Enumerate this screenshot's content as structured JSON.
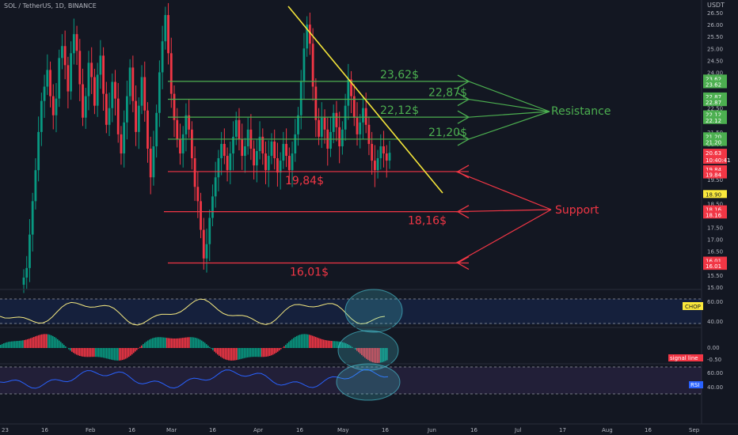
{
  "header": {
    "symbol": "SOL / TetherUS, 1D, BINANCE",
    "currency": "USDT"
  },
  "colors": {
    "bg": "#131722",
    "up": "#089981",
    "down": "#f23645",
    "resistance": "#4caf50",
    "support": "#f23645",
    "trend": "#f5e63a",
    "rsi": "#2962ff",
    "chop": "#f5e980"
  },
  "chart_data": {
    "type": "candlestick",
    "price_axis": [
      "26.50",
      "26.00",
      "25.50",
      "25.00",
      "24.50",
      "24.00",
      "23.50",
      "23.00",
      "22.50",
      "22.00",
      "21.50",
      "21.00",
      "20.50",
      "20.00",
      "19.50",
      "19.00",
      "18.50",
      "18.00",
      "17.50",
      "17.00",
      "16.50",
      "16.00",
      "15.50",
      "15.00"
    ],
    "ylim": [
      14.7,
      26.8
    ],
    "time_axis": [
      "23",
      "16",
      "Feb",
      "16",
      "Mar",
      "16",
      "Apr",
      "16",
      "May",
      "16",
      "Jun",
      "16",
      "Jul",
      "17",
      "Aug",
      "16",
      "Sep"
    ],
    "resistance_levels": [
      {
        "label": "23,62$",
        "value": 23.62,
        "tag": "23.62"
      },
      {
        "label": "22,87$",
        "value": 22.87,
        "tag": "22.87"
      },
      {
        "label": "22,12$",
        "value": 22.12,
        "tag": "22.12"
      },
      {
        "label": "21,20$",
        "value": 21.2,
        "tag": "21.20"
      }
    ],
    "support_levels": [
      {
        "label": "19,84$",
        "value": 19.84,
        "tag": "19.84"
      },
      {
        "label": "18,16$",
        "value": 18.16,
        "tag": "18.16"
      },
      {
        "label": "16,01$",
        "value": 16.01,
        "tag": "16.01"
      }
    ],
    "annotations": {
      "resistance": "Resistance",
      "support": "Support"
    },
    "last_price": {
      "value": 20.63,
      "label": "20.63",
      "countdown": "10:40:41"
    },
    "prev_tag": {
      "value": 18.9,
      "label": "18.90"
    },
    "candles_close": [
      15.4,
      15.8,
      17.2,
      18.6,
      19.9,
      21.5,
      22.8,
      23.4,
      24.1,
      23.0,
      22.2,
      22.9,
      24.6,
      25.1,
      24.3,
      23.2,
      24.8,
      25.6,
      24.9,
      23.5,
      22.1,
      23.0,
      24.4,
      23.8,
      22.6,
      23.9,
      24.7,
      23.1,
      21.8,
      22.5,
      23.6,
      22.9,
      21.4,
      20.6,
      21.9,
      23.0,
      24.2,
      22.8,
      21.5,
      22.6,
      23.8,
      22.4,
      20.8,
      19.6,
      20.9,
      22.3,
      24.0,
      25.3,
      26.4,
      24.8,
      23.1,
      22.0,
      21.2,
      20.6,
      21.4,
      22.2,
      21.6,
      20.4,
      19.2,
      18.6,
      17.4,
      16.2,
      16.8,
      17.9,
      18.8,
      19.6,
      20.4,
      21.0,
      20.5,
      19.9,
      20.6,
      21.3,
      22.0,
      21.2,
      20.5,
      20.9,
      21.6,
      20.8,
      20.1,
      20.7,
      21.3,
      20.6,
      19.9,
      20.5,
      21.1,
      20.4,
      19.8,
      20.3,
      21.0,
      20.5,
      19.9,
      20.6,
      21.4,
      22.2,
      23.6,
      25.0,
      26.0,
      25.2,
      23.4,
      22.0,
      21.3,
      22.1,
      21.6,
      20.8,
      21.5,
      22.3,
      21.7,
      20.9,
      21.6,
      22.6,
      23.7,
      23.0,
      22.1,
      21.4,
      21.9,
      22.5,
      21.8,
      21.0,
      20.3,
      19.9,
      20.4,
      20.9,
      20.6,
      20.3,
      20.63
    ],
    "indicators": [
      {
        "name": "CHOP",
        "label": "CHOP",
        "levels": [
          "60.00",
          "40.00"
        ]
      },
      {
        "name": "signal line",
        "label": "signal line",
        "levels": [
          "0.00",
          "-0.50"
        ]
      },
      {
        "name": "RSI",
        "label": "RSI",
        "levels": [
          "60.00",
          "40.00"
        ]
      }
    ]
  }
}
